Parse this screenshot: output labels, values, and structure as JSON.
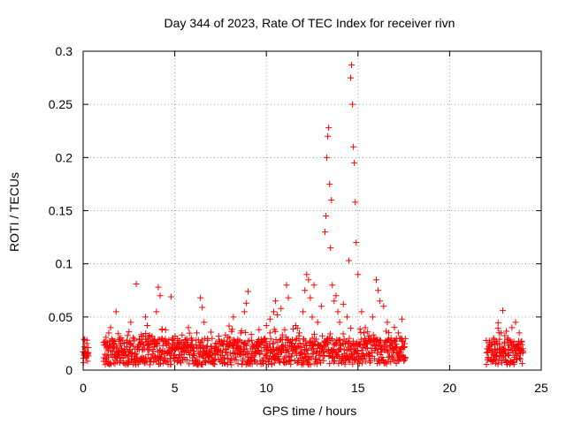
{
  "chart_data": {
    "type": "scatter",
    "title": "Day 344 of 2023, Rate Of TEC Index for receiver rivn",
    "xlabel": "GPS time / hours",
    "ylabel": "ROTI / TECUs",
    "xlim": [
      0,
      25
    ],
    "ylim": [
      0,
      0.3
    ],
    "xticks": [
      "0",
      "5",
      "10",
      "15",
      "20",
      "25"
    ],
    "yticks": [
      "0",
      "0.05",
      "0.1",
      "0.15",
      "0.2",
      "0.25",
      "0.3"
    ],
    "grid": true,
    "marker": "+",
    "color": "#ff0000",
    "series": [
      {
        "points": [
          [
            0.0,
            0.017
          ],
          [
            0.05,
            0.014
          ],
          [
            0.1,
            0.02
          ],
          [
            0.15,
            0.012
          ],
          [
            0.2,
            0.025
          ],
          [
            0.25,
            0.015
          ],
          [
            1.2,
            0.015
          ],
          [
            1.3,
            0.02
          ],
          [
            1.4,
            0.035
          ],
          [
            1.5,
            0.04
          ],
          [
            1.6,
            0.012
          ],
          [
            1.7,
            0.025
          ],
          [
            1.8,
            0.055
          ],
          [
            1.9,
            0.018
          ],
          [
            2.0,
            0.03
          ],
          [
            2.2,
            0.016
          ],
          [
            2.4,
            0.028
          ],
          [
            2.5,
            0.036
          ],
          [
            2.6,
            0.045
          ],
          [
            2.8,
            0.013
          ],
          [
            2.9,
            0.081
          ],
          [
            3.0,
            0.022
          ],
          [
            3.2,
            0.032
          ],
          [
            3.4,
            0.05
          ],
          [
            3.5,
            0.042
          ],
          [
            3.6,
            0.019
          ],
          [
            3.8,
            0.027
          ],
          [
            4.0,
            0.055
          ],
          [
            4.1,
            0.078
          ],
          [
            4.2,
            0.07
          ],
          [
            4.3,
            0.038
          ],
          [
            4.5,
            0.025
          ],
          [
            4.6,
            0.016
          ],
          [
            4.8,
            0.069
          ],
          [
            4.9,
            0.03
          ],
          [
            5.0,
            0.014
          ],
          [
            5.2,
            0.02
          ],
          [
            5.4,
            0.033
          ],
          [
            5.5,
            0.012
          ],
          [
            5.7,
            0.026
          ],
          [
            5.9,
            0.03
          ],
          [
            6.0,
            0.018
          ],
          [
            6.2,
            0.035
          ],
          [
            6.4,
            0.068
          ],
          [
            6.5,
            0.059
          ],
          [
            6.6,
            0.045
          ],
          [
            6.8,
            0.028
          ],
          [
            7.0,
            0.022
          ],
          [
            7.2,
            0.015
          ],
          [
            7.4,
            0.032
          ],
          [
            7.6,
            0.025
          ],
          [
            7.8,
            0.019
          ],
          [
            8.0,
            0.03
          ],
          [
            8.2,
            0.05
          ],
          [
            8.4,
            0.021
          ],
          [
            8.6,
            0.035
          ],
          [
            8.8,
            0.055
          ],
          [
            8.9,
            0.063
          ],
          [
            9.0,
            0.074
          ],
          [
            9.2,
            0.028
          ],
          [
            9.4,
            0.016
          ],
          [
            9.6,
            0.038
          ],
          [
            9.8,
            0.026
          ],
          [
            10.0,
            0.042
          ],
          [
            10.2,
            0.048
          ],
          [
            10.4,
            0.055
          ],
          [
            10.5,
            0.065
          ],
          [
            10.6,
            0.052
          ],
          [
            10.8,
            0.058
          ],
          [
            11.0,
            0.038
          ],
          [
            11.1,
            0.08
          ],
          [
            11.2,
            0.068
          ],
          [
            11.4,
            0.025
          ],
          [
            11.6,
            0.042
          ],
          [
            11.8,
            0.035
          ],
          [
            12.0,
            0.055
          ],
          [
            12.1,
            0.075
          ],
          [
            12.2,
            0.09
          ],
          [
            12.3,
            0.085
          ],
          [
            12.4,
            0.068
          ],
          [
            12.5,
            0.05
          ],
          [
            12.6,
            0.08
          ],
          [
            12.8,
            0.045
          ],
          [
            13.0,
            0.06
          ],
          [
            13.2,
            0.13
          ],
          [
            13.25,
            0.145
          ],
          [
            13.3,
            0.2
          ],
          [
            13.35,
            0.22
          ],
          [
            13.4,
            0.228
          ],
          [
            13.45,
            0.175
          ],
          [
            13.5,
            0.115
          ],
          [
            13.55,
            0.16
          ],
          [
            13.6,
            0.08
          ],
          [
            13.7,
            0.065
          ],
          [
            13.8,
            0.07
          ],
          [
            13.9,
            0.055
          ],
          [
            14.0,
            0.045
          ],
          [
            14.2,
            0.062
          ],
          [
            14.4,
            0.05
          ],
          [
            14.5,
            0.103
          ],
          [
            14.6,
            0.275
          ],
          [
            14.65,
            0.287
          ],
          [
            14.7,
            0.25
          ],
          [
            14.75,
            0.21
          ],
          [
            14.8,
            0.195
          ],
          [
            14.85,
            0.158
          ],
          [
            14.9,
            0.12
          ],
          [
            15.0,
            0.09
          ],
          [
            15.2,
            0.055
          ],
          [
            15.4,
            0.04
          ],
          [
            15.6,
            0.032
          ],
          [
            15.8,
            0.05
          ],
          [
            16.0,
            0.085
          ],
          [
            16.1,
            0.075
          ],
          [
            16.2,
            0.065
          ],
          [
            16.4,
            0.06
          ],
          [
            16.6,
            0.045
          ],
          [
            16.8,
            0.03
          ],
          [
            17.0,
            0.028
          ],
          [
            17.2,
            0.035
          ],
          [
            17.4,
            0.048
          ],
          [
            17.5,
            0.012
          ],
          [
            22.1,
            0.012
          ],
          [
            22.2,
            0.02
          ],
          [
            22.4,
            0.03
          ],
          [
            22.5,
            0.014
          ],
          [
            22.6,
            0.025
          ],
          [
            22.8,
            0.035
          ],
          [
            22.9,
            0.056
          ],
          [
            23.0,
            0.018
          ],
          [
            23.2,
            0.03
          ],
          [
            23.4,
            0.04
          ],
          [
            23.6,
            0.045
          ],
          [
            23.8,
            0.035
          ],
          [
            24.0,
            0.02
          ]
        ]
      }
    ],
    "band": {
      "segments": [
        [
          0.0,
          0.3
        ],
        [
          1.1,
          17.6
        ],
        [
          22.0,
          24.0
        ]
      ],
      "ymin": 0.005,
      "ymax": 0.03
    }
  }
}
